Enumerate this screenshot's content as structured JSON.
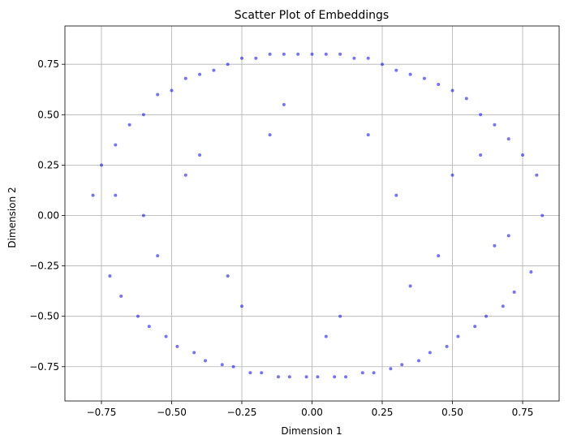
{
  "chart_data": {
    "type": "scatter",
    "title": "Scatter Plot of Embeddings",
    "xlabel": "Dimension 1",
    "ylabel": "Dimension 2",
    "xlim": [
      -0.88,
      0.88
    ],
    "ylim": [
      -0.92,
      0.94
    ],
    "xticks": [
      -0.75,
      -0.5,
      -0.25,
      0.0,
      0.25,
      0.5,
      0.75
    ],
    "xtick_labels": [
      "−0.75",
      "−0.50",
      "−0.25",
      "0.00",
      "0.25",
      "0.50",
      "0.75"
    ],
    "yticks": [
      -0.75,
      -0.5,
      -0.25,
      0.0,
      0.25,
      0.5,
      0.75
    ],
    "ytick_labels": [
      "−0.75",
      "−0.50",
      "−0.25",
      "0.00",
      "0.25",
      "0.50",
      "0.75"
    ],
    "grid": true,
    "point_color": "#0000ff",
    "point_alpha": 0.55,
    "series": [
      {
        "x": [
          -0.78,
          -0.75,
          -0.72,
          -0.7,
          -0.68,
          -0.65,
          -0.62,
          -0.6,
          -0.58,
          -0.55,
          -0.52,
          -0.5,
          -0.48,
          -0.45,
          -0.42,
          -0.4,
          -0.38,
          -0.35,
          -0.32,
          -0.3,
          -0.28,
          -0.25,
          -0.22,
          -0.2,
          -0.18,
          -0.15,
          -0.12,
          -0.1,
          -0.08,
          -0.05,
          -0.02,
          0.0,
          0.02,
          0.05,
          0.08,
          0.1,
          0.12,
          0.15,
          0.18,
          0.2,
          0.22,
          0.25,
          0.28,
          0.3,
          0.32,
          0.35,
          0.38,
          0.4,
          0.42,
          0.45,
          0.48,
          0.5,
          0.52,
          0.55,
          0.58,
          0.6,
          0.62,
          0.65,
          0.68,
          0.7,
          0.72,
          0.75,
          0.78,
          0.8,
          0.82,
          -0.6,
          -0.45,
          -0.3,
          -0.15,
          0.1,
          0.3,
          0.45,
          0.6,
          0.7,
          -0.7,
          -0.55,
          -0.4,
          -0.25,
          -0.1,
          0.05,
          0.2,
          0.35,
          0.5,
          0.65
        ],
        "y": [
          0.1,
          0.25,
          -0.3,
          0.35,
          -0.4,
          0.45,
          -0.5,
          0.5,
          -0.55,
          0.6,
          -0.6,
          0.62,
          -0.65,
          0.68,
          -0.68,
          0.7,
          -0.72,
          0.72,
          -0.74,
          0.75,
          -0.75,
          0.78,
          -0.78,
          0.78,
          -0.78,
          0.8,
          -0.8,
          0.8,
          -0.8,
          0.8,
          -0.8,
          0.8,
          -0.8,
          0.8,
          -0.8,
          0.8,
          -0.8,
          0.78,
          -0.78,
          0.78,
          -0.78,
          0.75,
          -0.76,
          0.72,
          -0.74,
          0.7,
          -0.72,
          0.68,
          -0.68,
          0.65,
          -0.65,
          0.62,
          -0.6,
          0.58,
          -0.55,
          0.5,
          -0.5,
          0.45,
          -0.45,
          0.38,
          -0.38,
          0.3,
          -0.28,
          0.2,
          0.0,
          0.0,
          0.2,
          -0.3,
          0.4,
          -0.5,
          0.1,
          -0.2,
          0.3,
          -0.1,
          0.1,
          -0.2,
          0.3,
          -0.45,
          0.55,
          -0.6,
          0.4,
          -0.35,
          0.2,
          -0.15
        ]
      }
    ]
  }
}
